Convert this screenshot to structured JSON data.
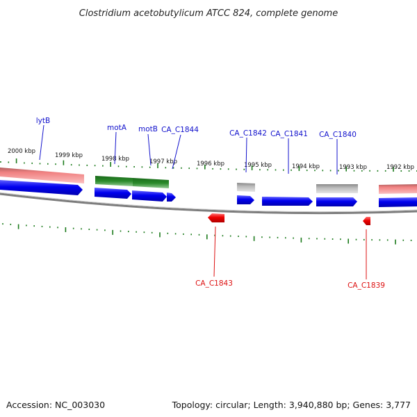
{
  "title": "Clostridium acetobutylicum ATCC 824, complete genome",
  "footer": {
    "accession": "Accession: NC_003030",
    "summary": "Topology: circular; Length: 3,940,880 bp; Genes: 3,777"
  },
  "colors": {
    "forward_cds": "#0000ee",
    "reverse_cds": "#ee0000",
    "forward_label": "#1010cc",
    "reverse_label": "#dd1010",
    "ticks": "#1a7a1a",
    "backbone": "#808080",
    "rna_pink": "#f09090",
    "green_feature": "#2a8a2a",
    "gray_feature": "#b8b8b8"
  },
  "tick_labels": [
    "2000 kbp",
    "1999 kbp",
    "1998 kbp",
    "1997 kbp",
    "1996 kbp",
    "1995 kbp",
    "1994 kbp",
    "1993 kbp",
    "1992 kbp"
  ],
  "forward_gene_labels": [
    "lytB",
    "motA",
    "motB",
    "CA_C1844",
    "CA_C1842",
    "CA_C1841",
    "CA_C1840"
  ],
  "reverse_gene_labels": [
    "CA_C1843",
    "CA_C1839"
  ]
}
